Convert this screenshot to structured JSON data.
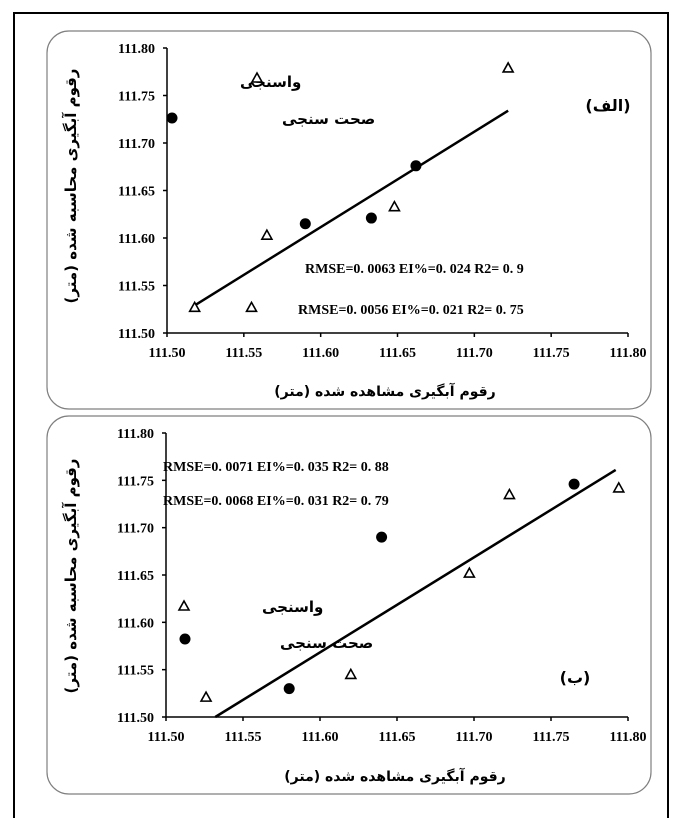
{
  "chart_data": [
    {
      "type": "scatter",
      "panel_label": "(الف)",
      "xlabel": "رقوم آبگیری مشاهده شده (متر)",
      "ylabel": "رقوم آبگیری محاسبه شده (متر)",
      "xlim": [
        111.5,
        111.8
      ],
      "ylim": [
        111.5,
        111.8
      ],
      "x_ticks": [
        "111.50",
        "111.55",
        "111.60",
        "111.65",
        "111.70",
        "111.75",
        "111.80"
      ],
      "y_ticks": [
        "111.50",
        "111.55",
        "111.60",
        "111.65",
        "111.70",
        "111.75",
        "111.80"
      ],
      "series": [
        {
          "name": "واسنجی",
          "marker": "triangle",
          "points": [
            {
              "x": 111.518,
              "y": 111.527
            },
            {
              "x": 111.555,
              "y": 111.527
            },
            {
              "x": 111.565,
              "y": 111.603
            },
            {
              "x": 111.648,
              "y": 111.633
            },
            {
              "x": 111.722,
              "y": 111.779
            }
          ]
        },
        {
          "name": "صحت سنجی",
          "marker": "circle",
          "points": [
            {
              "x": 111.59,
              "y": 111.615
            },
            {
              "x": 111.633,
              "y": 111.621
            },
            {
              "x": 111.662,
              "y": 111.676
            }
          ]
        }
      ],
      "trendline": {
        "x1": 111.518,
        "y1": 111.529,
        "x2": 111.722,
        "y2": 111.734
      },
      "legend_position": "top-left",
      "stats": [
        "RMSE=0. 0063  EI%=0. 024  R2= 0. 9",
        "RMSE=0. 0056  EI%=0. 021  R2= 0. 75"
      ]
    },
    {
      "type": "scatter",
      "panel_label": "(ب)",
      "xlabel": "رقوم آبگیری مشاهده شده  (متر)",
      "ylabel": "رقوم آبگیری محاسبه شده (متر)",
      "xlim": [
        111.5,
        111.8
      ],
      "ylim": [
        111.5,
        111.8
      ],
      "x_ticks": [
        "111.50",
        "111.55",
        "111.60",
        "111.65",
        "111.70",
        "111.75",
        "111.80"
      ],
      "y_ticks": [
        "111.50",
        "111.55",
        "111.60",
        "111.65",
        "111.70",
        "111.75",
        "111.80"
      ],
      "series": [
        {
          "name": "واسنجی",
          "marker": "triangle",
          "points": [
            {
              "x": 111.526,
              "y": 111.521
            },
            {
              "x": 111.62,
              "y": 111.545
            },
            {
              "x": 111.697,
              "y": 111.652
            },
            {
              "x": 111.723,
              "y": 111.735
            },
            {
              "x": 111.794,
              "y": 111.742
            }
          ]
        },
        {
          "name": "صحت سنجی",
          "marker": "circle",
          "points": [
            {
              "x": 111.58,
              "y": 111.53
            },
            {
              "x": 111.64,
              "y": 111.69
            },
            {
              "x": 111.765,
              "y": 111.746
            }
          ]
        }
      ],
      "trendline": {
        "x1": 111.532,
        "y1": 111.5,
        "x2": 111.792,
        "y2": 111.761
      },
      "legend_position": "bottom-left",
      "stats": [
        "RMSE=0. 0071  EI%=0. 035  R2= 0. 88",
        "RMSE=0. 0068   EI%=0. 031  R2= 0. 79"
      ]
    }
  ]
}
